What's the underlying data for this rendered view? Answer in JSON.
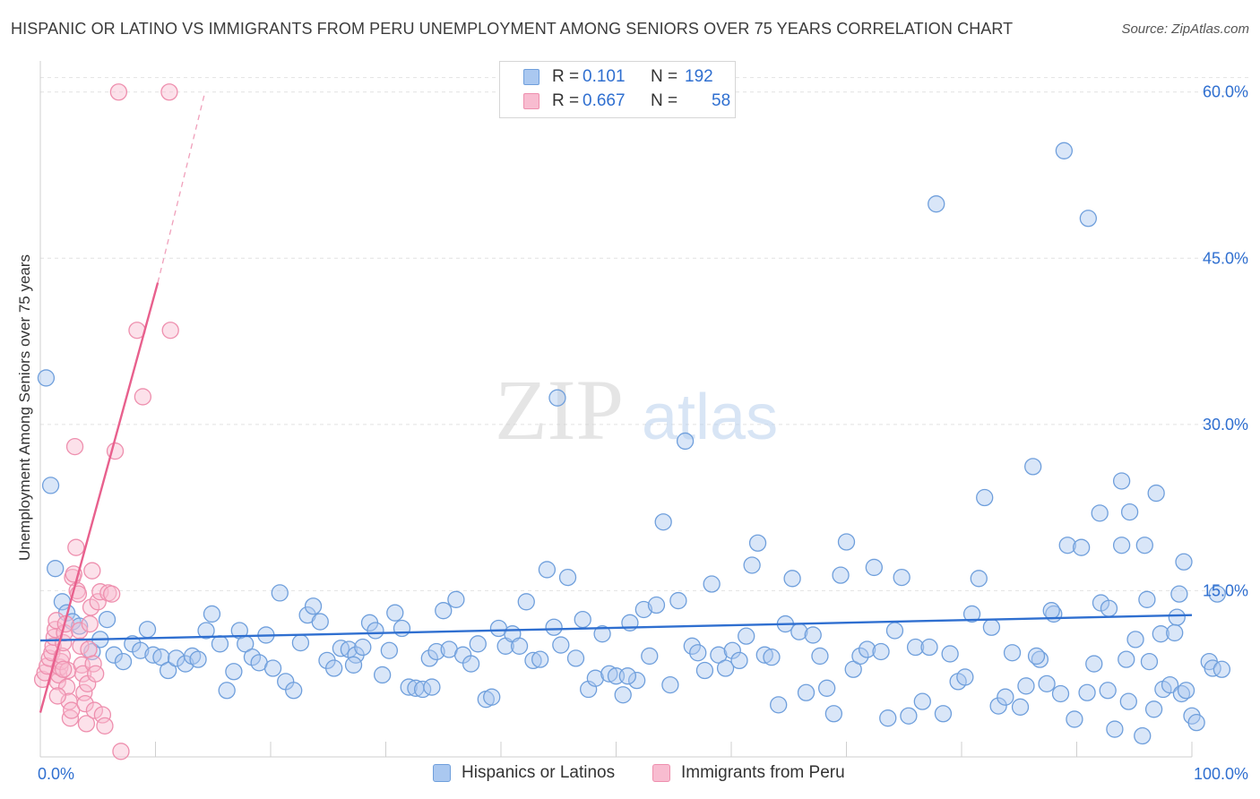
{
  "title": "HISPANIC OR LATINO VS IMMIGRANTS FROM PERU UNEMPLOYMENT AMONG SENIORS OVER 75 YEARS CORRELATION CHART",
  "source": "Source: ZipAtlas.com",
  "watermark": {
    "zip": "ZIP",
    "atlas": "atlas"
  },
  "legend": {
    "r_label": "R =",
    "n_label": "N =",
    "rows": [
      {
        "r": "0.101",
        "n": "192",
        "fill": "#aac8f0",
        "stroke": "#6f9fdc"
      },
      {
        "r": "0.667",
        "n": "58",
        "fill": "#f8bcd0",
        "stroke": "#ee8fae"
      }
    ]
  },
  "bottom_legend": [
    {
      "label": "Hispanics or Latinos",
      "fill": "#aac8f0",
      "stroke": "#6f9fdc"
    },
    {
      "label": "Immigrants from Peru",
      "fill": "#f8bcd0",
      "stroke": "#ee8fae"
    }
  ],
  "chart_data": {
    "type": "scatter",
    "title": "HISPANIC OR LATINO VS IMMIGRANTS FROM PERU UNEMPLOYMENT AMONG SENIORS OVER 75 YEARS CORRELATION CHART",
    "xlabel": "",
    "ylabel": "Unemployment Among Seniors over 75 years",
    "xlim": [
      0,
      100
    ],
    "ylim": [
      0,
      62
    ],
    "x_tick_labels": [
      {
        "value": 0,
        "label": "0.0%"
      },
      {
        "value": 100,
        "label": "100.0%"
      }
    ],
    "y_tick_labels": [
      {
        "value": 15,
        "label": "15.0%"
      },
      {
        "value": 30,
        "label": "30.0%"
      },
      {
        "value": 45,
        "label": "45.0%"
      },
      {
        "value": 60,
        "label": "60.0%"
      }
    ],
    "grid": true,
    "series": [
      {
        "name": "Hispanics or Latinos",
        "color": "#6f9fdc",
        "fill": "#aac8f0",
        "trend": {
          "x": [
            0,
            100
          ],
          "y": [
            10.5,
            12.8
          ],
          "style": "solid"
        },
        "points": [
          [
            0.5,
            34.2
          ],
          [
            0.9,
            24.5
          ],
          [
            1.3,
            17.0
          ],
          [
            1.9,
            14.0
          ],
          [
            2.3,
            13.0
          ],
          [
            2.8,
            12.2
          ],
          [
            3.4,
            11.8
          ],
          [
            4.5,
            9.5
          ],
          [
            5.2,
            10.6
          ],
          [
            5.8,
            12.4
          ],
          [
            6.4,
            9.2
          ],
          [
            7.2,
            8.6
          ],
          [
            8.0,
            10.2
          ],
          [
            8.7,
            9.6
          ],
          [
            9.3,
            11.5
          ],
          [
            9.8,
            9.2
          ],
          [
            10.5,
            9.0
          ],
          [
            11.1,
            7.8
          ],
          [
            11.8,
            8.9
          ],
          [
            12.6,
            8.4
          ],
          [
            13.2,
            9.1
          ],
          [
            13.7,
            8.8
          ],
          [
            14.4,
            11.4
          ],
          [
            14.9,
            12.9
          ],
          [
            15.6,
            10.2
          ],
          [
            16.2,
            6.0
          ],
          [
            16.8,
            7.7
          ],
          [
            17.3,
            11.4
          ],
          [
            17.8,
            10.2
          ],
          [
            18.4,
            9.0
          ],
          [
            19.0,
            8.5
          ],
          [
            19.6,
            11.0
          ],
          [
            20.2,
            8.0
          ],
          [
            20.8,
            14.8
          ],
          [
            21.3,
            6.8
          ],
          [
            22.0,
            6.0
          ],
          [
            22.6,
            10.3
          ],
          [
            23.2,
            12.8
          ],
          [
            23.7,
            13.6
          ],
          [
            24.3,
            12.2
          ],
          [
            24.9,
            8.7
          ],
          [
            25.5,
            8.0
          ],
          [
            26.1,
            9.8
          ],
          [
            26.8,
            9.7
          ],
          [
            27.4,
            9.2
          ],
          [
            28.0,
            9.9
          ],
          [
            28.6,
            12.1
          ],
          [
            29.1,
            11.4
          ],
          [
            29.7,
            7.4
          ],
          [
            30.3,
            9.6
          ],
          [
            30.8,
            13.0
          ],
          [
            31.4,
            11.6
          ],
          [
            32.0,
            6.3
          ],
          [
            32.6,
            6.2
          ],
          [
            33.2,
            6.1
          ],
          [
            33.8,
            8.9
          ],
          [
            34.4,
            9.5
          ],
          [
            35.0,
            13.2
          ],
          [
            35.5,
            9.7
          ],
          [
            36.1,
            14.2
          ],
          [
            36.7,
            9.2
          ],
          [
            37.4,
            8.4
          ],
          [
            38.0,
            10.2
          ],
          [
            38.7,
            5.2
          ],
          [
            39.2,
            5.4
          ],
          [
            39.8,
            11.6
          ],
          [
            40.4,
            10.0
          ],
          [
            41.0,
            11.1
          ],
          [
            41.6,
            10.0
          ],
          [
            42.2,
            14.0
          ],
          [
            42.8,
            8.7
          ],
          [
            43.4,
            8.8
          ],
          [
            44.0,
            16.9
          ],
          [
            44.6,
            11.7
          ],
          [
            45.2,
            10.1
          ],
          [
            45.8,
            16.2
          ],
          [
            46.5,
            8.9
          ],
          [
            47.1,
            12.4
          ],
          [
            47.6,
            6.1
          ],
          [
            48.2,
            7.1
          ],
          [
            48.8,
            11.1
          ],
          [
            49.4,
            7.5
          ],
          [
            50.0,
            7.3
          ],
          [
            50.6,
            5.6
          ],
          [
            51.2,
            12.1
          ],
          [
            51.8,
            6.9
          ],
          [
            52.4,
            13.3
          ],
          [
            52.9,
            9.1
          ],
          [
            53.5,
            13.7
          ],
          [
            54.1,
            21.2
          ],
          [
            54.7,
            6.5
          ],
          [
            55.4,
            14.1
          ],
          [
            56.0,
            28.5
          ],
          [
            56.6,
            10.0
          ],
          [
            57.1,
            9.4
          ],
          [
            57.7,
            7.8
          ],
          [
            58.3,
            15.6
          ],
          [
            58.9,
            9.2
          ],
          [
            59.5,
            8.0
          ],
          [
            60.1,
            9.6
          ],
          [
            60.7,
            8.7
          ],
          [
            61.3,
            10.9
          ],
          [
            61.8,
            17.3
          ],
          [
            62.3,
            19.3
          ],
          [
            62.9,
            9.2
          ],
          [
            63.5,
            9.0
          ],
          [
            64.1,
            4.7
          ],
          [
            64.7,
            12.0
          ],
          [
            65.3,
            16.1
          ],
          [
            65.9,
            11.3
          ],
          [
            66.5,
            5.8
          ],
          [
            67.1,
            11.0
          ],
          [
            67.7,
            9.1
          ],
          [
            68.3,
            6.2
          ],
          [
            68.9,
            3.9
          ],
          [
            69.5,
            16.4
          ],
          [
            70.0,
            19.4
          ],
          [
            70.6,
            7.9
          ],
          [
            71.2,
            9.1
          ],
          [
            71.8,
            9.7
          ],
          [
            72.4,
            17.1
          ],
          [
            73.0,
            9.5
          ],
          [
            73.6,
            3.5
          ],
          [
            74.2,
            11.4
          ],
          [
            74.8,
            16.2
          ],
          [
            75.4,
            3.7
          ],
          [
            76.0,
            9.9
          ],
          [
            76.6,
            5.0
          ],
          [
            77.2,
            9.9
          ],
          [
            77.8,
            49.9
          ],
          [
            78.4,
            3.9
          ],
          [
            79.0,
            9.3
          ],
          [
            79.7,
            6.8
          ],
          [
            80.3,
            7.2
          ],
          [
            80.9,
            12.9
          ],
          [
            81.5,
            16.1
          ],
          [
            82.0,
            23.4
          ],
          [
            82.6,
            11.7
          ],
          [
            83.2,
            4.6
          ],
          [
            83.8,
            5.4
          ],
          [
            84.4,
            9.4
          ],
          [
            85.1,
            4.5
          ],
          [
            85.6,
            6.4
          ],
          [
            86.2,
            26.2
          ],
          [
            86.8,
            8.8
          ],
          [
            87.4,
            6.6
          ],
          [
            88.0,
            12.9
          ],
          [
            88.6,
            5.7
          ],
          [
            89.2,
            19.1
          ],
          [
            89.8,
            3.4
          ],
          [
            90.4,
            18.9
          ],
          [
            90.9,
            5.8
          ],
          [
            91.5,
            8.4
          ],
          [
            92.1,
            13.9
          ],
          [
            92.7,
            6.0
          ],
          [
            93.3,
            2.5
          ],
          [
            93.9,
            19.1
          ],
          [
            94.5,
            5.0
          ],
          [
            95.1,
            10.6
          ],
          [
            95.7,
            1.9
          ],
          [
            96.3,
            8.6
          ],
          [
            96.9,
            23.8
          ],
          [
            97.5,
            6.1
          ],
          [
            98.1,
            6.5
          ],
          [
            98.7,
            12.6
          ],
          [
            99.3,
            17.6
          ],
          [
            100.0,
            3.7
          ],
          [
            88.9,
            54.7
          ],
          [
            91.0,
            48.6
          ],
          [
            93.9,
            24.9
          ],
          [
            94.6,
            22.1
          ],
          [
            92.0,
            22.0
          ],
          [
            95.9,
            19.1
          ],
          [
            86.5,
            9.1
          ],
          [
            87.8,
            13.2
          ],
          [
            92.8,
            13.4
          ],
          [
            94.3,
            8.8
          ],
          [
            96.1,
            14.2
          ],
          [
            96.7,
            4.3
          ],
          [
            97.3,
            11.1
          ],
          [
            98.9,
            14.7
          ],
          [
            99.1,
            5.7
          ],
          [
            99.5,
            6.0
          ],
          [
            100.4,
            3.1
          ],
          [
            101.5,
            8.6
          ],
          [
            101.8,
            8.0
          ],
          [
            102.2,
            14.7
          ],
          [
            102.6,
            7.9
          ],
          [
            98.5,
            11.2
          ],
          [
            44.9,
            32.4
          ],
          [
            27.2,
            8.3
          ],
          [
            34.0,
            6.3
          ],
          [
            51.0,
            7.3
          ]
        ]
      },
      {
        "name": "Immigrants from Peru",
        "color": "#ee8fae",
        "fill": "#f8bcd0",
        "trend": {
          "x": [
            0,
            10.2
          ],
          "y": [
            4.0,
            42.8
          ],
          "style": "solid",
          "dashed_extension": {
            "x": [
              10.2,
              14.3
            ],
            "y": [
              42.8,
              60.0
            ]
          }
        },
        "points": [
          [
            0.2,
            7.0
          ],
          [
            0.4,
            7.6
          ],
          [
            0.6,
            8.2
          ],
          [
            0.8,
            8.9
          ],
          [
            1.0,
            9.4
          ],
          [
            1.1,
            10.0
          ],
          [
            1.2,
            10.8
          ],
          [
            1.3,
            11.5
          ],
          [
            1.4,
            12.3
          ],
          [
            1.5,
            6.8
          ],
          [
            1.6,
            7.4
          ],
          [
            1.7,
            8.1
          ],
          [
            1.8,
            8.6
          ],
          [
            1.9,
            9.1
          ],
          [
            2.0,
            10.3
          ],
          [
            2.1,
            11.2
          ],
          [
            2.2,
            12.0
          ],
          [
            2.3,
            6.3
          ],
          [
            2.4,
            7.8
          ],
          [
            2.5,
            5.0
          ],
          [
            2.6,
            3.5
          ],
          [
            2.7,
            4.2
          ],
          [
            2.8,
            16.2
          ],
          [
            2.9,
            16.5
          ],
          [
            3.0,
            28.0
          ],
          [
            3.1,
            18.9
          ],
          [
            3.2,
            15.0
          ],
          [
            3.3,
            14.7
          ],
          [
            3.4,
            11.4
          ],
          [
            3.5,
            10.0
          ],
          [
            3.6,
            8.3
          ],
          [
            3.7,
            7.5
          ],
          [
            3.8,
            5.8
          ],
          [
            3.9,
            4.8
          ],
          [
            4.0,
            3.0
          ],
          [
            4.1,
            6.6
          ],
          [
            4.2,
            9.7
          ],
          [
            4.3,
            12.0
          ],
          [
            4.4,
            13.5
          ],
          [
            4.5,
            16.8
          ],
          [
            4.6,
            8.4
          ],
          [
            4.7,
            4.2
          ],
          [
            4.8,
            7.5
          ],
          [
            5.0,
            14.0
          ],
          [
            5.2,
            14.9
          ],
          [
            5.4,
            3.8
          ],
          [
            5.6,
            2.8
          ],
          [
            5.9,
            14.8
          ],
          [
            6.2,
            14.7
          ],
          [
            6.5,
            27.6
          ],
          [
            6.8,
            60.0
          ],
          [
            7.0,
            0.5
          ],
          [
            8.4,
            38.5
          ],
          [
            8.9,
            32.5
          ],
          [
            11.2,
            60.0
          ],
          [
            11.3,
            38.5
          ],
          [
            1.5,
            5.5
          ],
          [
            2.0,
            7.9
          ]
        ]
      }
    ]
  }
}
